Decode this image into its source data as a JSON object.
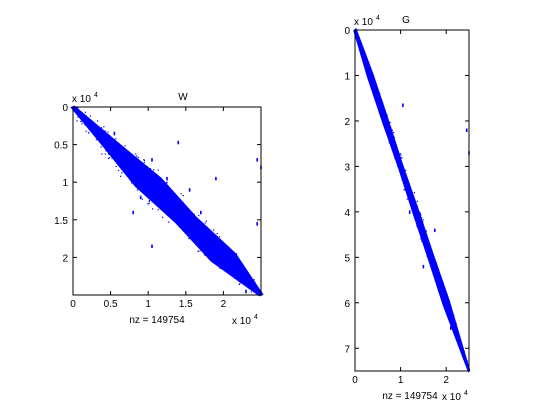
{
  "chart_data": [
    {
      "type": "scatter",
      "subtype": "sparsity-pattern",
      "title": "W",
      "xlabel": "nz = 149754",
      "nz": 149754,
      "xlim": [
        0,
        2.5
      ],
      "ylim": [
        0,
        2.5
      ],
      "y_reversed": true,
      "x_exponent_label": "x 10",
      "x_exponent": "4",
      "y_exponent_label": "x 10",
      "y_exponent": "4",
      "xticks": [
        0,
        0.5,
        1,
        1.5,
        2
      ],
      "xtick_labels": [
        "0",
        "0.5",
        "1",
        "1.5",
        "2"
      ],
      "yticks": [
        0,
        0.5,
        1,
        1.5,
        2
      ],
      "ytick_labels": [
        "0",
        "0.5",
        "1",
        "1.5",
        "2"
      ],
      "color": "#0000ff",
      "band": [
        {
          "x": 0.0,
          "half_width": 0.02
        },
        {
          "x": 0.5,
          "half_width": 0.09
        },
        {
          "x": 1.0,
          "half_width": 0.17
        },
        {
          "x": 1.5,
          "half_width": 0.13
        },
        {
          "x": 2.0,
          "half_width": 0.16
        },
        {
          "x": 2.5,
          "half_width": 0.02
        }
      ],
      "outliers": [
        {
          "x": 1.05,
          "y": 0.7
        },
        {
          "x": 1.4,
          "y": 0.47
        },
        {
          "x": 1.9,
          "y": 0.95
        },
        {
          "x": 2.45,
          "y": 0.7
        },
        {
          "x": 2.5,
          "y": 0.8
        },
        {
          "x": 0.8,
          "y": 1.4
        },
        {
          "x": 1.7,
          "y": 1.4
        },
        {
          "x": 1.05,
          "y": 1.85
        },
        {
          "x": 2.45,
          "y": 1.55
        },
        {
          "x": 0.55,
          "y": 0.35
        },
        {
          "x": 2.1,
          "y": 2.15
        },
        {
          "x": 0.9,
          "y": 1.2
        },
        {
          "x": 1.55,
          "y": 1.1
        },
        {
          "x": 2.3,
          "y": 2.45
        },
        {
          "x": 1.25,
          "y": 0.95
        }
      ]
    },
    {
      "type": "scatter",
      "subtype": "sparsity-pattern",
      "title": "G",
      "xlabel": "nz = 149754",
      "nz": 149754,
      "xlim": [
        0,
        2.5
      ],
      "ylim": [
        0,
        7.5
      ],
      "y_reversed": true,
      "x_exponent_label": "x 10",
      "x_exponent": "4",
      "y_exponent_label": "x 10",
      "y_exponent": "4",
      "xticks": [
        0,
        1,
        2
      ],
      "xtick_labels": [
        "0",
        "1",
        "2"
      ],
      "yticks": [
        0,
        1,
        2,
        3,
        4,
        5,
        6,
        7
      ],
      "ytick_labels": [
        "0",
        "1",
        "2",
        "3",
        "4",
        "5",
        "6",
        "7"
      ],
      "color": "#0000ff",
      "band": [
        {
          "y": 0.0,
          "half_width": 0.02
        },
        {
          "y": 1.0,
          "half_width": 0.05
        },
        {
          "y": 2.0,
          "half_width": 0.05
        },
        {
          "y": 3.0,
          "half_width": 0.04
        },
        {
          "y": 4.0,
          "half_width": 0.05
        },
        {
          "y": 5.0,
          "half_width": 0.05
        },
        {
          "y": 6.0,
          "half_width": 0.06
        },
        {
          "y": 7.5,
          "half_width": 0.01
        }
      ],
      "outliers": [
        {
          "x": 1.05,
          "y": 1.65
        },
        {
          "x": 1.75,
          "y": 4.4
        },
        {
          "x": 2.45,
          "y": 2.2
        },
        {
          "x": 2.5,
          "y": 2.7
        },
        {
          "x": 1.2,
          "y": 4.0
        },
        {
          "x": 0.55,
          "y": 1.8
        },
        {
          "x": 2.1,
          "y": 6.55
        },
        {
          "x": 1.5,
          "y": 5.2
        }
      ]
    }
  ]
}
